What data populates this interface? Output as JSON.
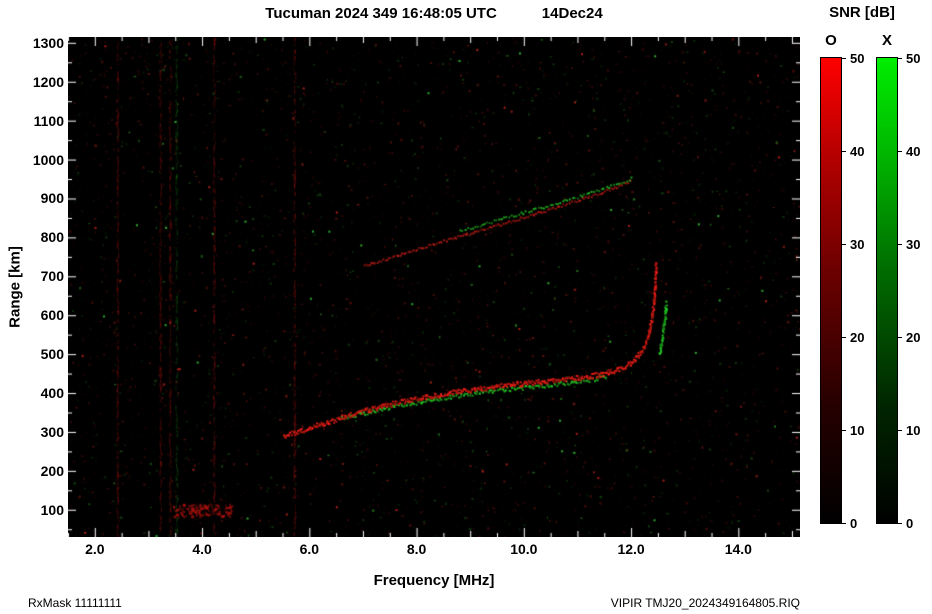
{
  "header": {
    "title": "Tucuman 2024 349 16:48:05 UTC",
    "date": "14Dec24",
    "snr_label": "SNR [dB]"
  },
  "footer": {
    "left": "RxMask 11111111",
    "right": "VIPIR  TMJ20_2024349164805.RIQ"
  },
  "colorbars": {
    "o": {
      "label": "O",
      "color_top": "#ff0000",
      "color_bottom": "#000000",
      "ticks": [
        {
          "v": 50,
          "label": "50"
        },
        {
          "v": 40,
          "label": "40"
        },
        {
          "v": 30,
          "label": "30"
        },
        {
          "v": 20,
          "label": "20"
        },
        {
          "v": 10,
          "label": "10"
        },
        {
          "v": 0,
          "label": "0"
        }
      ]
    },
    "x": {
      "label": "X",
      "color_top": "#00ee00",
      "color_bottom": "#000000",
      "ticks": [
        {
          "v": 50,
          "label": "50"
        },
        {
          "v": 40,
          "label": "40"
        },
        {
          "v": 30,
          "label": "30"
        },
        {
          "v": 20,
          "label": "20"
        },
        {
          "v": 10,
          "label": "10"
        },
        {
          "v": 0,
          "label": "0"
        }
      ]
    }
  },
  "chart_data": {
    "type": "scatter",
    "title": "Tucuman 2024 349 16:48:05 UTC 14Dec24",
    "xlabel": "Frequency [MHz]",
    "ylabel": "Range [km]",
    "xlim": [
      1.5,
      15.15
    ],
    "ylim": [
      30,
      1315
    ],
    "background": "#000000",
    "xticks": [
      {
        "v": 2,
        "label": "2.0"
      },
      {
        "v": 4,
        "label": "4.0"
      },
      {
        "v": 6,
        "label": "6.0"
      },
      {
        "v": 8,
        "label": "8.0"
      },
      {
        "v": 10,
        "label": "10.0"
      },
      {
        "v": 12,
        "label": "12.0"
      },
      {
        "v": 14,
        "label": "14.0"
      }
    ],
    "yticks": [
      {
        "v": 100,
        "label": "100"
      },
      {
        "v": 200,
        "label": "200"
      },
      {
        "v": 300,
        "label": "300"
      },
      {
        "v": 400,
        "label": "400"
      },
      {
        "v": 500,
        "label": "500"
      },
      {
        "v": 600,
        "label": "600"
      },
      {
        "v": 700,
        "label": "700"
      },
      {
        "v": 800,
        "label": "800"
      },
      {
        "v": 900,
        "label": "900"
      },
      {
        "v": 1000,
        "label": "1000"
      },
      {
        "v": 1100,
        "label": "1100"
      },
      {
        "v": 1200,
        "label": "1200"
      },
      {
        "v": 1300,
        "label": "1300"
      }
    ],
    "series": [
      {
        "name": "x-mode-first-hop-fringe",
        "mode": "X",
        "color": [
          40,
          225,
          40
        ],
        "width": 4,
        "step": 1.5,
        "alpha": 0.9,
        "points": [
          [
            6.6,
            338
          ],
          [
            7.0,
            350
          ],
          [
            7.4,
            362
          ],
          [
            7.8,
            373
          ],
          [
            8.2,
            383
          ],
          [
            8.6,
            392
          ],
          [
            9.0,
            400
          ],
          [
            9.4,
            407
          ],
          [
            9.8,
            413
          ],
          [
            10.2,
            419
          ],
          [
            10.6,
            425
          ],
          [
            11.0,
            431
          ],
          [
            11.3,
            437
          ],
          [
            11.55,
            445
          ]
        ]
      },
      {
        "name": "o-mode-first-hop",
        "mode": "O",
        "color": [
          255,
          32,
          24
        ],
        "width": 5,
        "step": 0.9,
        "alpha": 1,
        "points": [
          [
            5.5,
            292
          ],
          [
            5.8,
            304
          ],
          [
            6.1,
            317
          ],
          [
            6.4,
            330
          ],
          [
            6.7,
            343
          ],
          [
            7.0,
            355
          ],
          [
            7.3,
            366
          ],
          [
            7.6,
            376
          ],
          [
            7.9,
            385
          ],
          [
            8.2,
            393
          ],
          [
            8.5,
            400
          ],
          [
            8.8,
            406
          ],
          [
            9.1,
            412
          ],
          [
            9.4,
            417
          ],
          [
            9.7,
            422
          ],
          [
            10.0,
            427
          ],
          [
            10.3,
            431
          ],
          [
            10.6,
            435
          ],
          [
            10.9,
            439
          ],
          [
            11.2,
            444
          ],
          [
            11.45,
            451
          ],
          [
            11.65,
            459
          ],
          [
            11.85,
            469
          ],
          [
            12.0,
            482
          ],
          [
            12.12,
            497
          ],
          [
            12.22,
            517
          ],
          [
            12.3,
            547
          ],
          [
            12.36,
            582
          ],
          [
            12.4,
            620
          ],
          [
            12.43,
            658
          ],
          [
            12.45,
            700
          ],
          [
            12.44,
            740
          ]
        ]
      },
      {
        "name": "x-mode-critical-asymptote",
        "mode": "X",
        "color": [
          40,
          225,
          40
        ],
        "width": 6,
        "step": 1,
        "alpha": 0.95,
        "points": [
          [
            12.52,
            500
          ],
          [
            12.56,
            535
          ],
          [
            12.6,
            572
          ],
          [
            12.63,
            606
          ],
          [
            12.64,
            636
          ]
        ]
      },
      {
        "name": "second-hop-o",
        "mode": "O",
        "color": [
          205,
          30,
          24
        ],
        "width": 2.5,
        "step": 2,
        "alpha": 0.85,
        "points": [
          [
            7.0,
            728
          ],
          [
            7.5,
            750
          ],
          [
            8.0,
            772
          ],
          [
            8.5,
            793
          ],
          [
            9.0,
            813
          ],
          [
            9.5,
            833
          ],
          [
            10.0,
            854
          ],
          [
            10.5,
            875
          ],
          [
            11.0,
            897
          ],
          [
            11.5,
            920
          ],
          [
            12.0,
            948
          ]
        ]
      },
      {
        "name": "second-hop-x",
        "mode": "X",
        "color": [
          40,
          215,
          40
        ],
        "width": 2.5,
        "step": 2.5,
        "alpha": 0.8,
        "points": [
          [
            8.8,
            820
          ],
          [
            9.3,
            838
          ],
          [
            9.8,
            858
          ],
          [
            10.3,
            878
          ],
          [
            10.8,
            898
          ],
          [
            11.3,
            919
          ],
          [
            11.75,
            941
          ],
          [
            12.05,
            956
          ]
        ]
      }
    ],
    "noise": {
      "seed": 1337,
      "speckles": 4800,
      "green_fraction": 0.28,
      "bright_dots": 70,
      "streaks_red": [
        2.42,
        3.22,
        3.4,
        4.22,
        5.72
      ],
      "streaks_green": [
        3.52
      ],
      "cluster": {
        "f": 4.0,
        "df": 0.55,
        "r": 100,
        "dr": 16,
        "n": 150
      }
    }
  }
}
